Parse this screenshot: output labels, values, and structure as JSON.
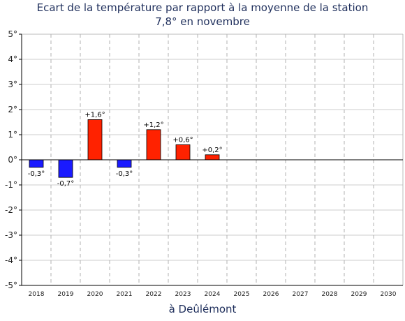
{
  "chart_data": {
    "type": "bar",
    "title": "Ecart de la température par rapport à la moyenne de la station",
    "subtitle": "7,8° en novembre",
    "xlabel": "à Deûlémont",
    "ylabel": "",
    "categories": [
      "2018",
      "2019",
      "2020",
      "2021",
      "2022",
      "2023",
      "2024",
      "2025",
      "2026",
      "2027",
      "2028",
      "2029",
      "2030"
    ],
    "values": [
      -0.3,
      -0.7,
      1.6,
      -0.3,
      1.2,
      0.6,
      0.2,
      null,
      null,
      null,
      null,
      null,
      null
    ],
    "data_labels": [
      "-0,3°",
      "-0,7°",
      "+1,6°",
      "-0,3°",
      "+1,2°",
      "+0,6°",
      "+0,2°",
      "",
      "",
      "",
      "",
      "",
      ""
    ],
    "ylim": [
      -5,
      5
    ],
    "yticks": [
      5,
      4,
      3,
      2,
      1,
      0,
      -1,
      -2,
      -3,
      -4,
      -5
    ],
    "ytick_labels": [
      "5°",
      "4°",
      "3°",
      "2°",
      "1°",
      "0°",
      "-1°",
      "-2°",
      "-3°",
      "-4°",
      "-5°"
    ],
    "grid": true,
    "colors": {
      "positive": "#ff2200",
      "negative": "#1a1aff",
      "grid": "#cccccc",
      "title": "#1f2f5c"
    }
  }
}
